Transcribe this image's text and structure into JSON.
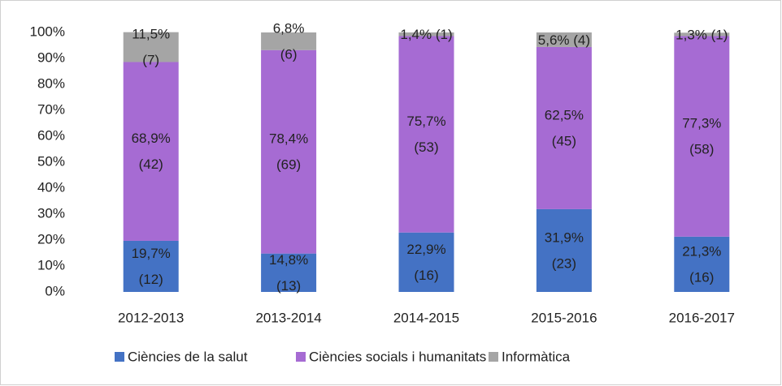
{
  "chart_data": {
    "type": "stacked_bar",
    "categories": [
      "2012-2013",
      "2013-2014",
      "2014-2015",
      "2015-2016",
      "2016-2017"
    ],
    "series": [
      {
        "name": "Ciències de la salut",
        "color": "#4472c4",
        "values": [
          19.7,
          14.8,
          22.9,
          31.9,
          21.3
        ],
        "value_labels": [
          "19,7%",
          "14,8%",
          "22,9%",
          "31,9%",
          "21,3%"
        ],
        "counts": [
          12,
          13,
          16,
          23,
          16
        ],
        "count_labels": [
          "(12)",
          "(13)",
          "(16)",
          "(23)",
          "(16)"
        ]
      },
      {
        "name": "Ciències socials i humanitats",
        "color": "#a66bd3",
        "values": [
          68.9,
          78.4,
          75.7,
          62.5,
          77.3
        ],
        "value_labels": [
          "68,9%",
          "78,4%",
          "75,7%",
          "62,5%",
          "77,3%"
        ],
        "counts": [
          42,
          69,
          53,
          45,
          58
        ],
        "count_labels": [
          "(42)",
          "(69)",
          "(53)",
          "(45)",
          "(58)"
        ]
      },
      {
        "name": "Informàtica",
        "color": "#a5a5a5",
        "values": [
          11.5,
          6.8,
          1.4,
          5.6,
          1.3
        ],
        "value_labels": [
          "11,5%",
          "6,8%",
          "1,4%",
          "5,6%",
          "1,3%"
        ],
        "counts": [
          7,
          6,
          1,
          4,
          1
        ],
        "count_labels": [
          "(7)",
          "(6)",
          "(1)",
          "(4)",
          "(1)"
        ]
      }
    ],
    "ylim": [
      0,
      100
    ],
    "yticks": [
      {
        "value": 0,
        "label": "0%"
      },
      {
        "value": 10,
        "label": "10%"
      },
      {
        "value": 20,
        "label": "20%"
      },
      {
        "value": 30,
        "label": "30%"
      },
      {
        "value": 40,
        "label": "40%"
      },
      {
        "value": 50,
        "label": "50%"
      },
      {
        "value": 60,
        "label": "60%"
      },
      {
        "value": 70,
        "label": "70%"
      },
      {
        "value": 80,
        "label": "80%"
      },
      {
        "value": 90,
        "label": "90%"
      },
      {
        "value": 100,
        "label": "100%"
      }
    ],
    "grid": false,
    "legend": "bottom"
  }
}
